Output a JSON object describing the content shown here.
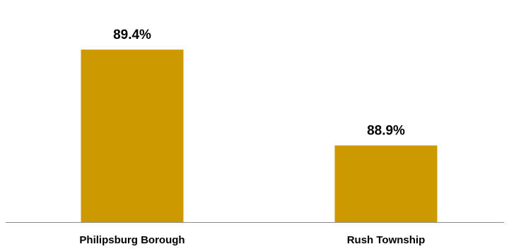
{
  "chart_data": {
    "type": "bar",
    "categories": [
      "Philipsburg Borough",
      "Rush Township"
    ],
    "values": [
      89.4,
      88.9
    ],
    "value_labels": [
      "89.4%",
      "88.9%"
    ],
    "ylim": [
      88.5,
      89.5
    ],
    "grid": false,
    "legend": "none",
    "colors": {
      "bar": "#CC9900",
      "axis": "#8C8C8C",
      "text": "#000000"
    }
  }
}
